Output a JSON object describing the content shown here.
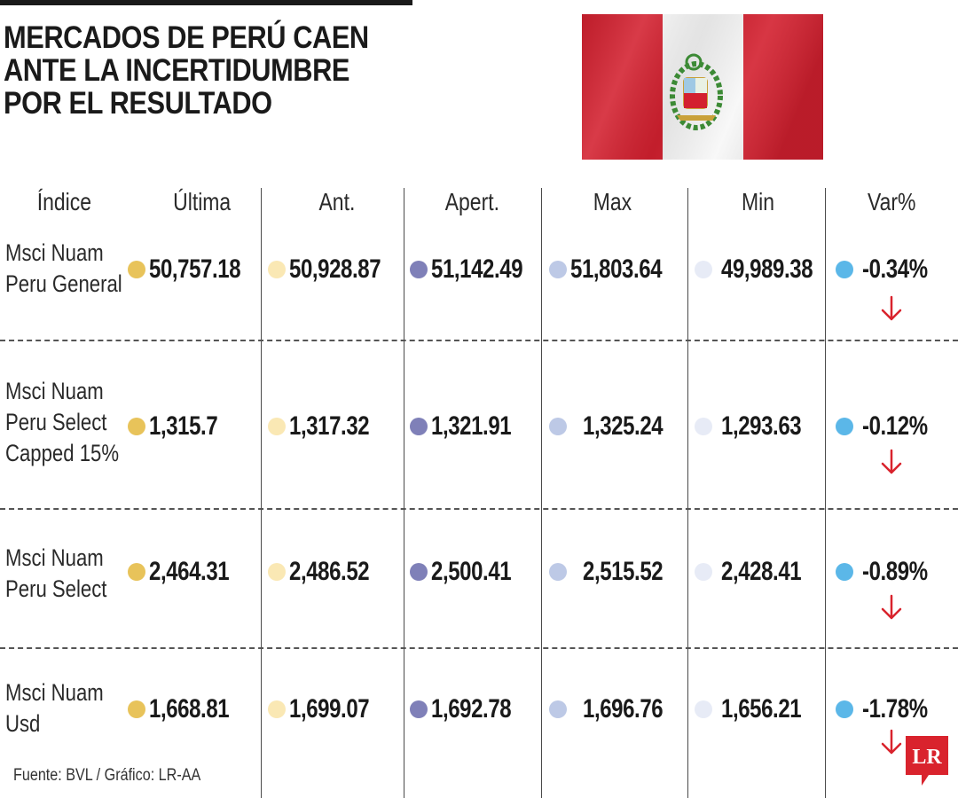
{
  "headline": [
    "MERCADOS DE PERÚ CAEN",
    "ANTE LA INCERTIDUMBRE",
    "POR EL RESULTADO"
  ],
  "columns": [
    "Índice",
    "Última",
    "Ant.",
    "Apert.",
    "Max",
    "Min",
    "Var%"
  ],
  "dot_colors": [
    "#e8c35a",
    "#fae8b4",
    "#7f80b8",
    "#bdc9e6",
    "#e7ebf6",
    "#5bb7e8"
  ],
  "arrow_color": "#d9232d",
  "rows": [
    {
      "name": [
        "Msci Nuam",
        "Peru General"
      ],
      "ultima": "50,757.18",
      "ant": "50,928.87",
      "apert": "51,142.49",
      "max": "51,803.64",
      "min": "49,989.38",
      "var": "-0.34%"
    },
    {
      "name": [
        "Msci Nuam",
        "Peru Select",
        "Capped 15%"
      ],
      "ultima": "1,315.7",
      "ant": "1,317.32",
      "apert": "1,321.91",
      "max": "1,325.24",
      "min": "1,293.63",
      "var": "-0.12%"
    },
    {
      "name": [
        "Msci Nuam",
        "Peru Select"
      ],
      "ultima": "2,464.31",
      "ant": "2,486.52",
      "apert": "2,500.41",
      "max": "2,515.52",
      "min": "2,428.41",
      "var": "-0.89%"
    },
    {
      "name": [
        "Msci Nuam",
        "Usd"
      ],
      "ultima": "1,668.81",
      "ant": "1,699.07",
      "apert": "1,692.78",
      "max": "1,696.76",
      "min": "1,656.21",
      "var": "-1.78%"
    }
  ],
  "source": "Fuente: BVL / Gráfico: LR-AA",
  "logo_text": "LR",
  "flag_colors": {
    "red": "#d3202f",
    "white": "#f7f7f7"
  }
}
